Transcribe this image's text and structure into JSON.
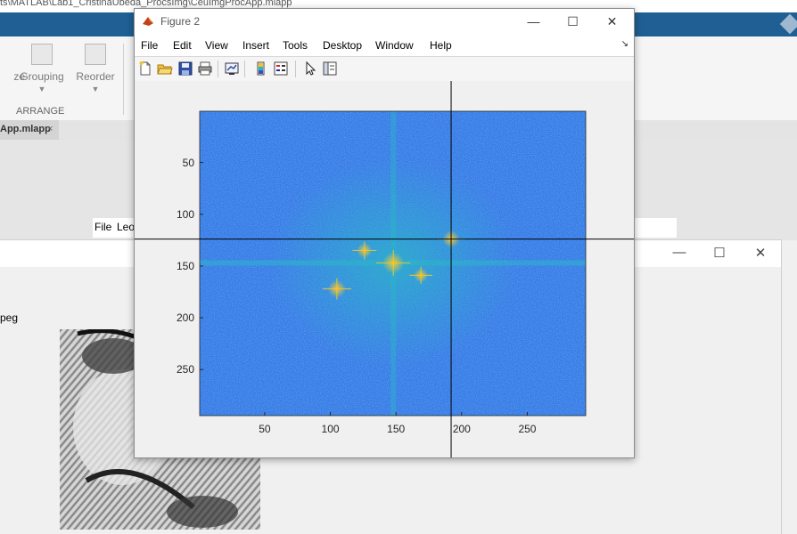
{
  "background_app": {
    "path_fragment": "ts\\MATLAB\\Lab1_CristinaUbeda_ProcsImg\\CeuImgProcApp.mlapp",
    "ribbon": {
      "grouping_label": "Grouping",
      "reorder_label": "Reorder",
      "partial_label": "ze",
      "group_name": "ARRANGE"
    },
    "tab": {
      "label": "App.mlapp",
      "close_glyph": "×"
    },
    "menubar": {
      "file_label": "File",
      "partial_label": "Leo"
    }
  },
  "second_figure": {
    "visible_label_fragment": "peg",
    "controls": {
      "minimize": "—",
      "maximize": "☐",
      "close": "✕"
    }
  },
  "figure2": {
    "title": "Figure 2",
    "window_controls": {
      "minimize": "—",
      "maximize": "☐",
      "close": "✕"
    },
    "menu": {
      "file": "File",
      "edit": "Edit",
      "view": "View",
      "insert": "Insert",
      "tools": "Tools",
      "desktop": "Desktop",
      "window": "Window",
      "help": "Help"
    },
    "toolbar": [
      {
        "name": "new-figure-icon"
      },
      {
        "name": "open-file-icon"
      },
      {
        "name": "save-icon"
      },
      {
        "name": "print-icon"
      },
      {
        "name": "link-plot-icon"
      },
      {
        "name": "insert-colorbar-icon"
      },
      {
        "name": "insert-legend-icon"
      },
      {
        "name": "pointer-icon"
      },
      {
        "name": "property-editor-icon"
      }
    ],
    "dock_glyph": "↘"
  },
  "chart_data": {
    "type": "heatmap",
    "title": "",
    "xlabel": "",
    "ylabel": "",
    "xlim": [
      0.5,
      294.5
    ],
    "ylim": [
      0.5,
      294.5
    ],
    "x_ticks": [
      50,
      100,
      150,
      200,
      250
    ],
    "y_ticks": [
      50,
      100,
      150,
      200,
      250
    ],
    "y_reversed": true,
    "colormap": "parula",
    "crosshair": {
      "x": 192,
      "y": 124
    },
    "peaks": [
      {
        "x": 148,
        "y": 147,
        "intensity": 1.0
      },
      {
        "x": 105,
        "y": 172,
        "intensity": 0.75
      },
      {
        "x": 192,
        "y": 124,
        "intensity": 0.7
      },
      {
        "x": 126,
        "y": 135,
        "intensity": 0.55
      },
      {
        "x": 169,
        "y": 159,
        "intensity": 0.5
      }
    ],
    "colors": {
      "low": "#3a78e6",
      "mid": "#2bb6c8",
      "high": "#f6c531"
    }
  }
}
